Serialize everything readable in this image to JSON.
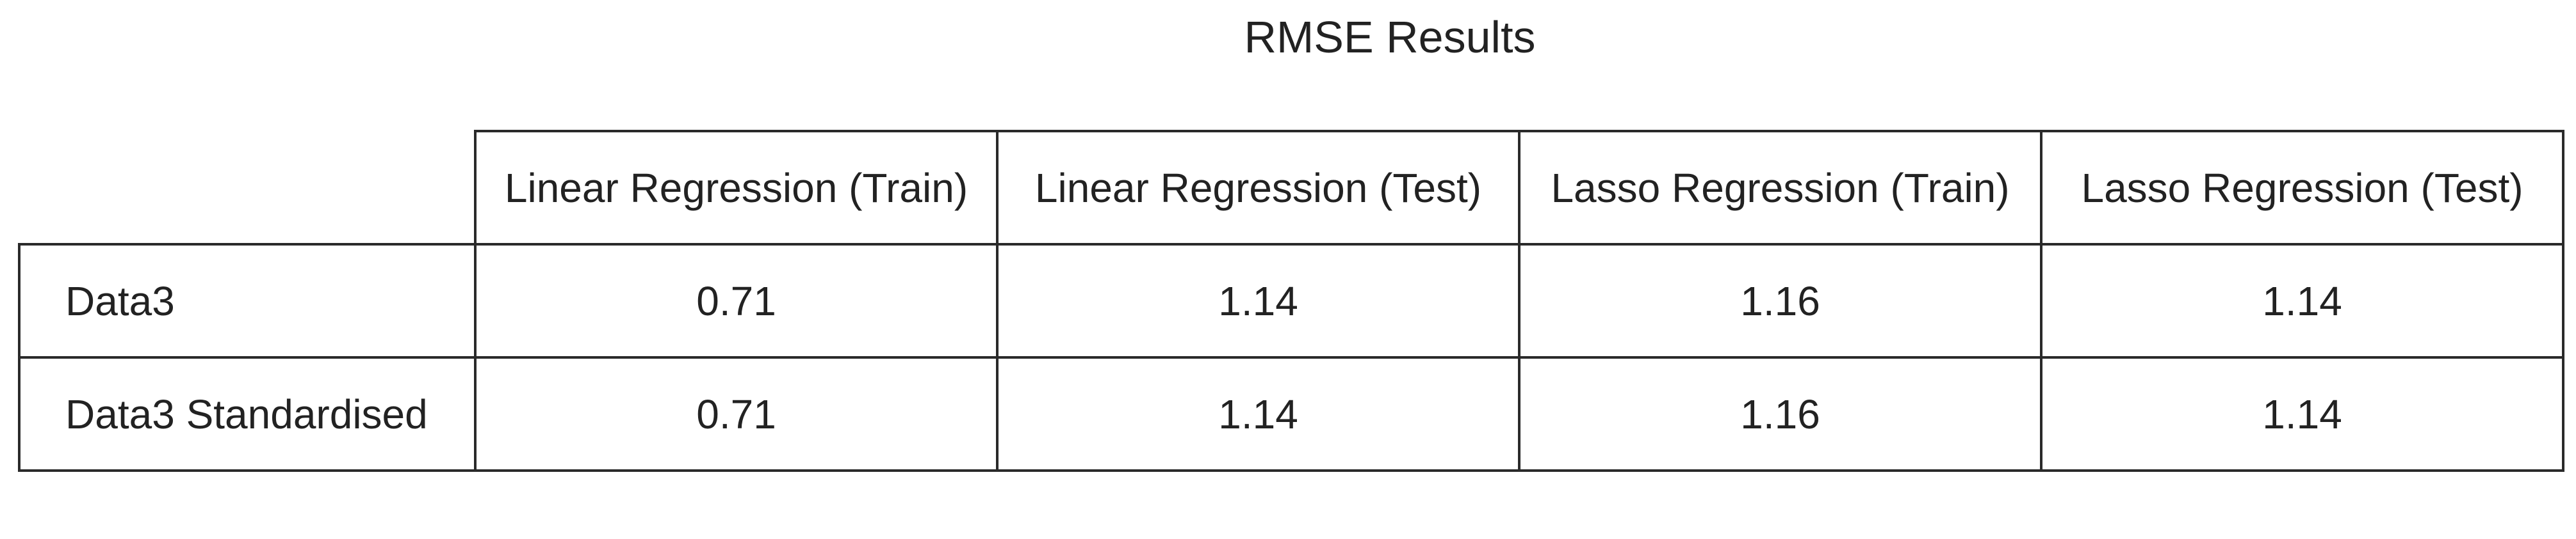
{
  "chart_data": {
    "type": "table",
    "title": "RMSE Results",
    "columns": [
      "Linear Regression (Train)",
      "Linear Regression (Test)",
      "Lasso Regression (Train)",
      "Lasso Regression (Test)"
    ],
    "rows": [
      {
        "label": "Data3",
        "values": [
          "0.71",
          "1.14",
          "1.16",
          "1.14"
        ]
      },
      {
        "label": "Data3 Standardised",
        "values": [
          "0.71",
          "1.14",
          "1.16",
          "1.14"
        ]
      }
    ]
  }
}
